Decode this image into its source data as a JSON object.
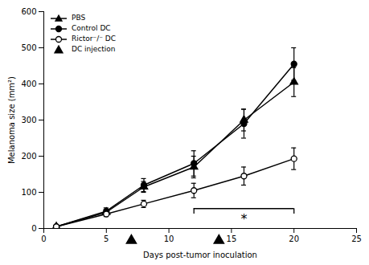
{
  "chart_data": {
    "type": "line",
    "x": [
      1,
      5,
      8,
      12,
      16,
      20
    ],
    "series": [
      {
        "name": "PBS",
        "color": "#000000",
        "marker": "triangle",
        "values": [
          5,
          45,
          115,
          170,
          300,
          405
        ],
        "errors": [
          2,
          8,
          15,
          30,
          30,
          40
        ]
      },
      {
        "name": "Control DC",
        "color": "#000000",
        "marker": "circle",
        "values": [
          5,
          48,
          120,
          180,
          290,
          455
        ],
        "errors": [
          2,
          9,
          18,
          35,
          40,
          45
        ]
      },
      {
        "name": "Rictor⁻/⁻ DC",
        "color": "#000000",
        "marker": "open_circle",
        "values": [
          5,
          40,
          68,
          105,
          145,
          193
        ],
        "errors": [
          2,
          7,
          10,
          20,
          25,
          30
        ]
      }
    ],
    "injections": {
      "name": "DC injection",
      "x": [
        7,
        14
      ],
      "marker": "triangle",
      "color": "#000000"
    },
    "bracket": {
      "x1": 12,
      "x2": 20,
      "y": 55,
      "drop": 15,
      "color": "#000000"
    },
    "annotations": [
      {
        "text": "*",
        "x": 16,
        "y": 25
      }
    ],
    "xlabel": "Days post-tumor inoculation",
    "ylabel": "Melanoma size (mm²)",
    "xlim": [
      0,
      25
    ],
    "ylim": [
      0,
      600
    ],
    "xticks": [
      0,
      5,
      10,
      15,
      20,
      25
    ],
    "yticks": [
      0,
      100,
      200,
      300,
      400,
      500,
      600
    ],
    "grid": false,
    "legend": "upper left"
  }
}
